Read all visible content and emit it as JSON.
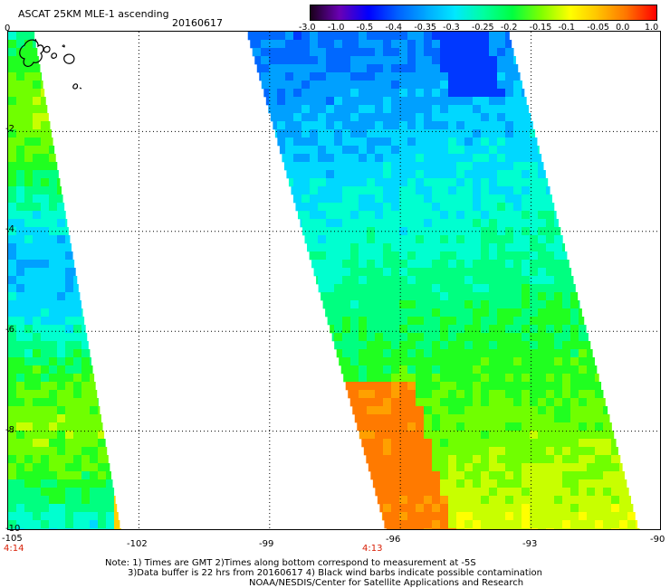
{
  "header": {
    "title": "ASCAT 25KM MLE-1 ascending",
    "date": "20160617",
    "corner_label": "0"
  },
  "colorbar": {
    "labels": [
      "-3.0",
      "-1.0",
      "-0.5",
      "-0.4",
      "-0.35",
      "-0.3",
      "-0.25",
      "-0.2",
      "-0.15",
      "-0.1",
      "-0.05",
      "0.0",
      "1.0"
    ],
    "colors": [
      "#1a001a",
      "#6a00b4",
      "#0000ff",
      "#0060ff",
      "#00a8ff",
      "#00e8ff",
      "#00ffa0",
      "#00ff40",
      "#80ff00",
      "#ffff00",
      "#ffc000",
      "#ff7000",
      "#ff0000"
    ]
  },
  "axes": {
    "lat_labels": [
      "-2",
      "-4",
      "-6",
      "-8",
      "-10"
    ],
    "lon_labels": [
      "-105",
      "-102",
      "-99",
      "-96",
      "-93",
      "-90"
    ],
    "times": [
      "4:14",
      "4:13"
    ],
    "lon_range": [
      -105,
      -90
    ],
    "lat_range": [
      -10,
      0
    ],
    "grid": true
  },
  "swaths": [
    {
      "name": "west",
      "lon_top_left": -105,
      "lon_top_right": -104.4,
      "lon_bottom_left": -105,
      "lon_bottom_right": -102.4
    },
    {
      "name": "east",
      "lon_top_left": -99.5,
      "lon_top_right": -93.5,
      "lon_bottom_left": -96.3,
      "lon_bottom_right": -90.5
    }
  ],
  "notes": [
    "Note: 1) Times are GMT 2)Times along bottom correspond to measurement at -5S",
    "3)Data buffer is 22 hrs from 20160617 4) Black wind barbs indicate possible contamination",
    "NOAA/NESDIS/Center for Satellite Applications and Research"
  ]
}
